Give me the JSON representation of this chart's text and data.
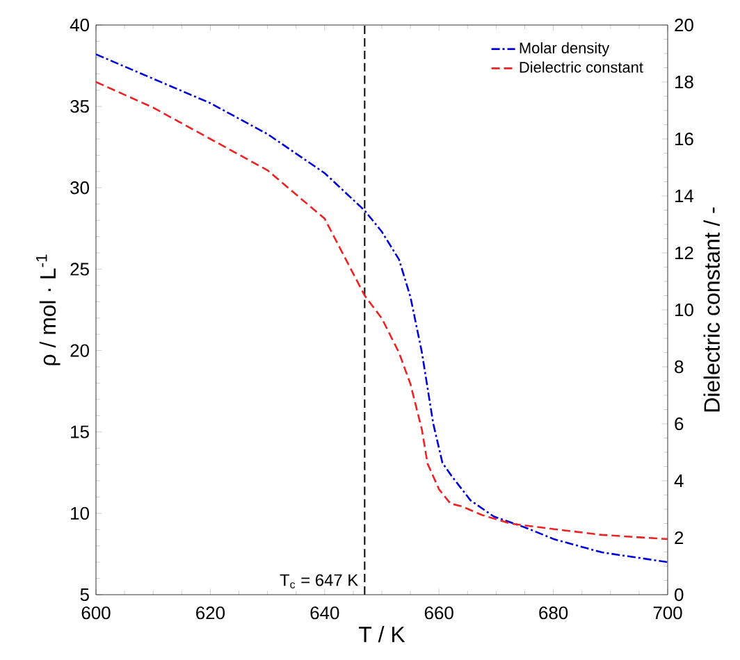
{
  "chart_data": {
    "type": "line",
    "xlabel": "T / K",
    "ylabel": "ρ / mol · L$^{-1}$",
    "y2label": "Dielectric constant / -",
    "xlim": [
      600,
      700
    ],
    "xticks": [
      600,
      620,
      640,
      660,
      680,
      700
    ],
    "ylim": [
      5,
      40
    ],
    "yticks": [
      5,
      10,
      15,
      20,
      25,
      30,
      35,
      40
    ],
    "y2lim": [
      0,
      20
    ],
    "y2ticks": [
      0,
      2,
      4,
      6,
      8,
      10,
      12,
      14,
      16,
      18,
      20
    ],
    "legend": "top right",
    "grid": false,
    "marker": "none",
    "series": [
      {
        "name": "Molar density",
        "color": "#0000dd",
        "line_style": "dashdot",
        "x": [
          600,
          610,
          620,
          630,
          640,
          647,
          650,
          653,
          655,
          657,
          659,
          660.6,
          662.2,
          665.5,
          669.6,
          675.3,
          680.2,
          688.5,
          700
        ],
        "values": [
          38.2,
          36.7,
          35.2,
          33.3,
          30.9,
          28.6,
          27.3,
          25.6,
          23.3,
          19.9,
          15.5,
          13.1,
          12.3,
          10.8,
          9.8,
          9.1,
          8.4,
          7.6,
          7.0
        ]
      },
      {
        "name": "Dielectric constant",
        "color": "#ee2222",
        "line_style": "dashed",
        "axis": "y2",
        "x": [
          600,
          610,
          620,
          630,
          640,
          647,
          650,
          653,
          655,
          657,
          658,
          660,
          662,
          664,
          667.5,
          672.4,
          680.2,
          688.5,
          700
        ],
        "values": [
          18.0,
          17.1,
          16.0,
          14.9,
          13.2,
          10.5,
          9.7,
          8.5,
          7.4,
          5.8,
          4.6,
          3.7,
          3.2,
          3.1,
          2.8,
          2.5,
          2.3,
          2.1,
          1.95
        ]
      }
    ],
    "ref_lines": [
      {
        "axis": "x",
        "value": 647,
        "label": "T$_{c}$ = 647 K",
        "color": "#000000",
        "line_style": "dashed"
      }
    ]
  }
}
